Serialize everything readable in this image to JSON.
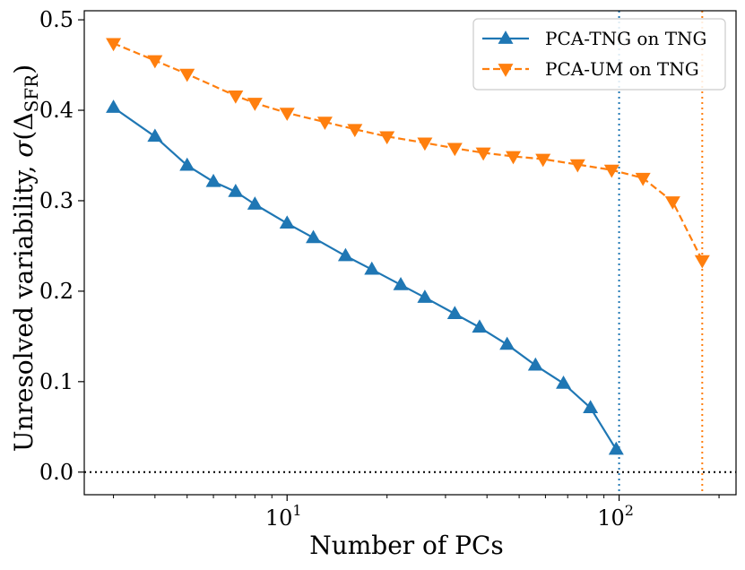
{
  "chart_data": {
    "type": "line",
    "xscale": "log",
    "xlabel": "Number of PCs",
    "ylabel_main": "Unresolved variability, ",
    "ylabel_sigma": "σ",
    "ylabel_open": "(Δ",
    "ylabel_sub": "SFR",
    "ylabel_close": ")",
    "xlim": [
      2.45,
      225
    ],
    "ylim": [
      -0.025,
      0.51
    ],
    "yticks": [
      0.0,
      0.1,
      0.2,
      0.3,
      0.4,
      0.5
    ],
    "ytick_labels": [
      "0.0",
      "0.1",
      "0.2",
      "0.3",
      "0.4",
      "0.5"
    ],
    "xticks": [
      {
        "value": 10,
        "base": "10",
        "exp": "1"
      },
      {
        "value": 100,
        "base": "10",
        "exp": "2"
      }
    ],
    "hline": {
      "y": 0.0,
      "color": "#000000",
      "style": "dotted"
    },
    "vlines": [
      {
        "x": 100,
        "color": "#1f77b4",
        "style": "dotted"
      },
      {
        "x": 178,
        "color": "#ff7f0e",
        "style": "dotted"
      }
    ],
    "legend_position": "top-right",
    "series": [
      {
        "name": "PCA-TNG on TNG",
        "color": "#1f77b4",
        "linestyle": "solid",
        "marker": "triangle-up",
        "x": [
          3,
          4,
          5,
          6,
          7,
          8,
          10,
          12,
          15,
          18,
          22,
          26,
          32,
          38,
          46,
          56,
          68,
          82,
          98
        ],
        "y": [
          0.403,
          0.371,
          0.339,
          0.321,
          0.31,
          0.296,
          0.275,
          0.259,
          0.239,
          0.224,
          0.207,
          0.193,
          0.175,
          0.16,
          0.141,
          0.118,
          0.098,
          0.071,
          0.025
        ]
      },
      {
        "name": "PCA-UM on TNG",
        "color": "#ff7f0e",
        "linestyle": "dashed",
        "marker": "triangle-down",
        "x": [
          3,
          4,
          5,
          7,
          8,
          10,
          13,
          16,
          20,
          26,
          32,
          39,
          48,
          59,
          75,
          95,
          118,
          145,
          178
        ],
        "y": [
          0.474,
          0.455,
          0.44,
          0.416,
          0.408,
          0.397,
          0.387,
          0.379,
          0.371,
          0.364,
          0.358,
          0.353,
          0.349,
          0.346,
          0.34,
          0.334,
          0.325,
          0.299,
          0.234
        ]
      }
    ]
  }
}
